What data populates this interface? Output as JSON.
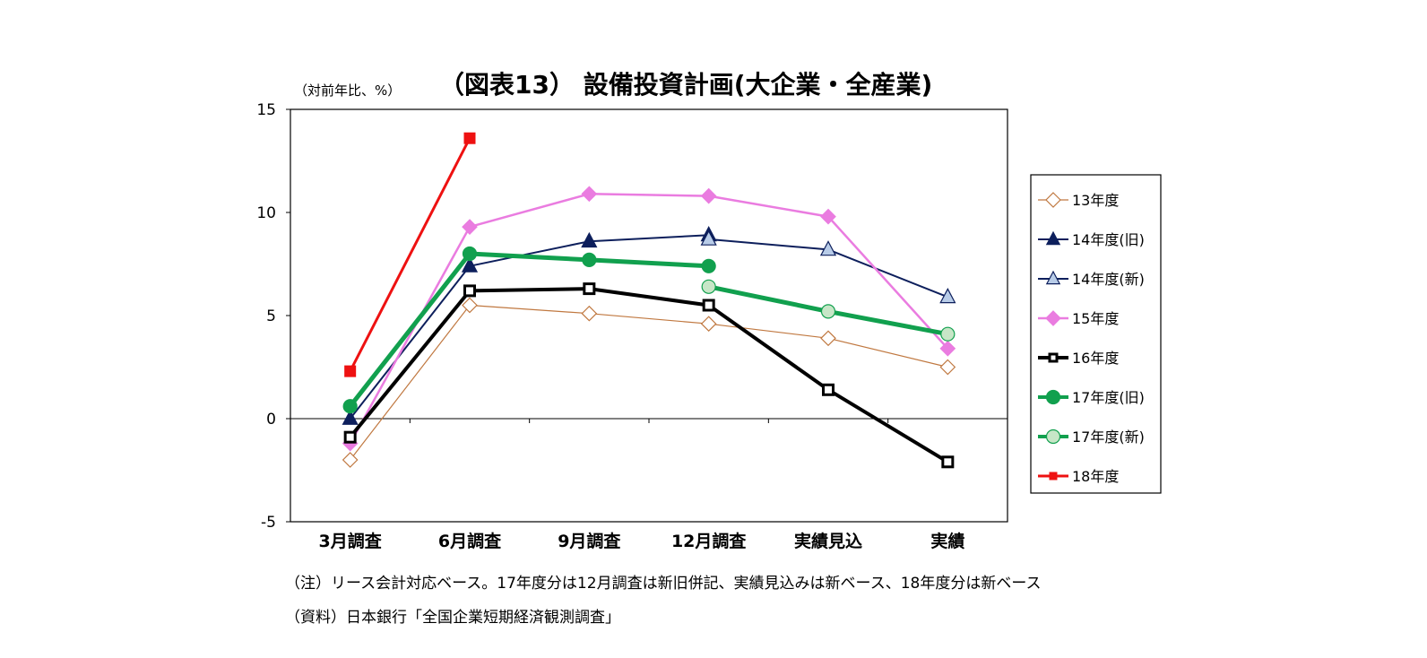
{
  "chart_data": {
    "type": "line",
    "title": "（図表13） 設備投資計画(大企業・全産業)",
    "unit_label": "（対前年比、%）",
    "categories": [
      "3月調査",
      "6月調査",
      "9月調査",
      "12月調査",
      "実績見込",
      "実績"
    ],
    "ylim": [
      -5,
      15
    ],
    "yticks": [
      -5,
      0,
      5,
      10,
      15
    ],
    "grid": false,
    "legend_position": "right",
    "series": [
      {
        "name": "13年度",
        "values": [
          -2.0,
          5.5,
          5.1,
          4.6,
          3.9,
          2.5
        ],
        "color": "#c07840",
        "marker": "diamond-open",
        "width": 1.2,
        "marker_size": 8
      },
      {
        "name": "14年度(旧)",
        "values": [
          0.0,
          7.4,
          8.6,
          8.9,
          null,
          null
        ],
        "color": "#0d1f5c",
        "marker": "triangle",
        "width": 2,
        "marker_size": 9
      },
      {
        "name": "14年度(新)",
        "values": [
          null,
          null,
          null,
          8.7,
          8.2,
          5.9
        ],
        "color": "#0d1f5c",
        "marker": "triangle-light",
        "marker_fill": "#b8cce8",
        "width": 2,
        "marker_size": 9
      },
      {
        "name": "15年度",
        "values": [
          -1.2,
          9.3,
          10.9,
          10.8,
          9.8,
          3.4
        ],
        "color": "#ea7ce0",
        "marker": "diamond",
        "width": 2.5,
        "marker_size": 8
      },
      {
        "name": "16年度",
        "values": [
          -0.9,
          6.2,
          6.3,
          5.5,
          1.4,
          -2.1
        ],
        "color": "#000000",
        "marker": "square-open",
        "width": 4,
        "marker_size": 11
      },
      {
        "name": "17年度(旧)",
        "values": [
          0.6,
          8.0,
          7.7,
          7.4,
          null,
          null
        ],
        "color": "#11a04e",
        "marker": "circle",
        "width": 5,
        "marker_size": 7.5
      },
      {
        "name": "17年度(新)",
        "values": [
          null,
          null,
          null,
          6.4,
          5.2,
          4.1
        ],
        "color": "#11a04e",
        "marker": "circle-light",
        "marker_fill": "#c7e6c7",
        "width": 5,
        "marker_size": 7.5
      },
      {
        "name": "18年度",
        "values": [
          2.3,
          13.6,
          null,
          null,
          null,
          null
        ],
        "color": "#ee1111",
        "marker": "square",
        "width": 3,
        "marker_size": 12
      }
    ]
  },
  "notes": {
    "note1": "（注）リース会計対応ベース。17年度分は12月調査は新旧併記、実績見込みは新ベース、18年度分は新ベース",
    "source": "（資料）日本銀行「全国企業短期経済観測調査」"
  }
}
